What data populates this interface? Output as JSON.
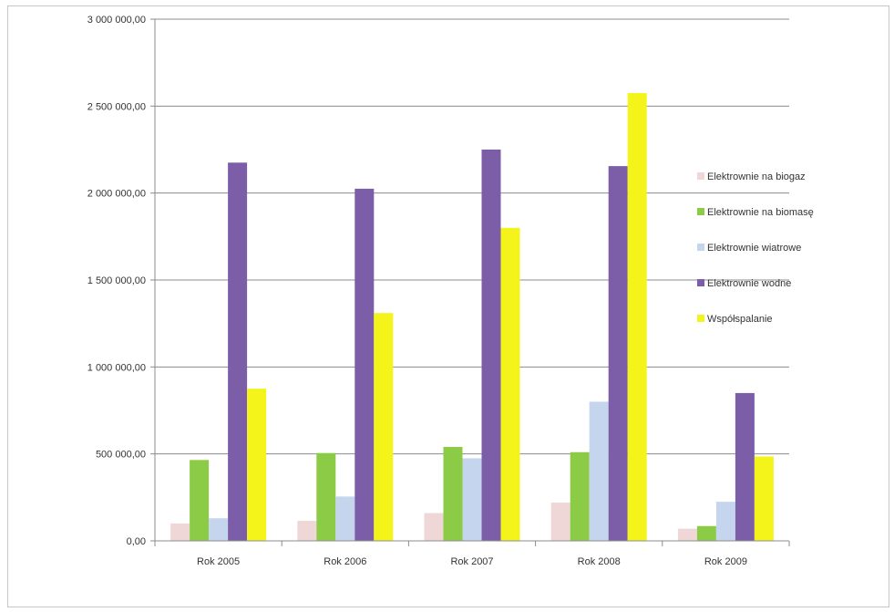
{
  "chart_data": {
    "type": "bar",
    "categories": [
      "Rok 2005",
      "Rok 2006",
      "Rok 2007",
      "Rok 2008",
      "Rok 2009"
    ],
    "series": [
      {
        "name": "Elektrownie na biogaz",
        "color": "#f0d7d7",
        "values": [
          100000,
          115000,
          160000,
          220000,
          70000
        ]
      },
      {
        "name": "Elektrownie na biomasę",
        "color": "#8ccb46",
        "values": [
          465000,
          505000,
          540000,
          510000,
          85000
        ]
      },
      {
        "name": "Elektrownie wiatrowe",
        "color": "#c6d5ee",
        "values": [
          130000,
          255000,
          475000,
          800000,
          225000
        ]
      },
      {
        "name": "Elektrownie wodne",
        "color": "#7c5ea8",
        "values": [
          2175000,
          2025000,
          2250000,
          2155000,
          850000
        ]
      },
      {
        "name": "Współspalanie",
        "color": "#f4f41a",
        "values": [
          875000,
          1310000,
          1800000,
          2575000,
          485000
        ]
      }
    ],
    "ylim": [
      0,
      3000000
    ],
    "yticks": [
      "0,00",
      "500 000,00",
      "1 000 000,00",
      "1 500 000,00",
      "2 000 000,00",
      "2 500 000,00",
      "3 000 000,00"
    ],
    "title": "",
    "xlabel": "",
    "ylabel": "",
    "grid": true,
    "legend_position": "right"
  }
}
